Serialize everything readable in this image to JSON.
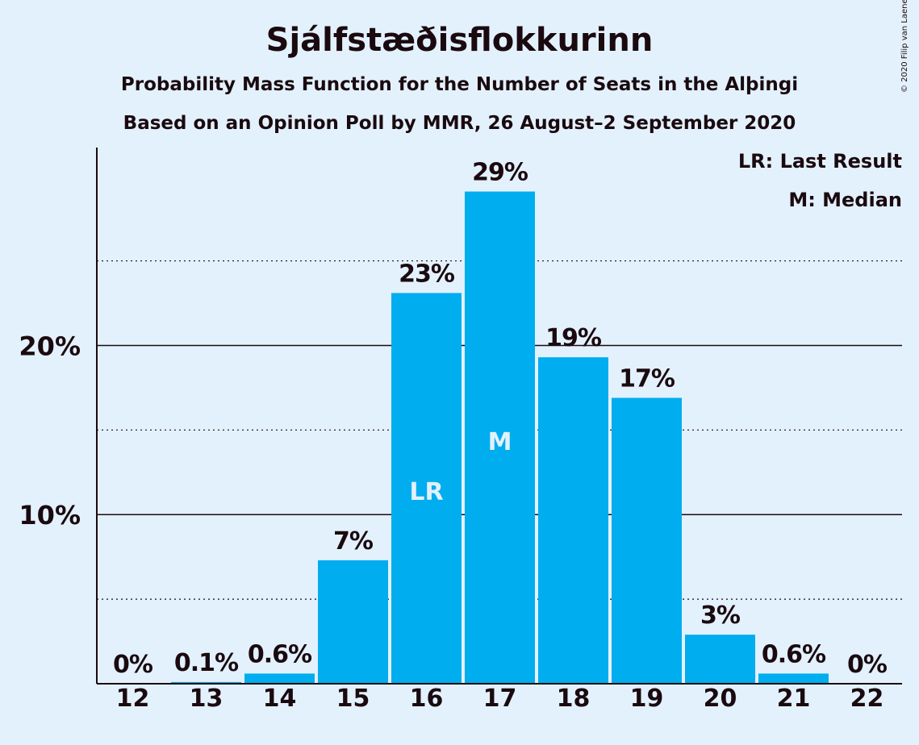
{
  "header": {
    "title": "Sjálfstæðisflokkurinn",
    "subtitle": "Probability Mass Function for the Number of Seats in the Alþingi",
    "subtitle2": "Based on an Opinion Poll by MMR, 26 August–2 September 2020",
    "copyright": "© 2020 Filip van Laenen"
  },
  "legend": {
    "last_result": "LR: Last Result",
    "median": "M: Median"
  },
  "colors": {
    "bar": "#00adef",
    "background": "#e3f1fd",
    "text": "#1a0a0f"
  },
  "chart_data": {
    "type": "bar",
    "categories": [
      "12",
      "13",
      "14",
      "15",
      "16",
      "17",
      "18",
      "19",
      "20",
      "21",
      "22"
    ],
    "values": [
      0,
      0.1,
      0.6,
      7.3,
      23.1,
      29.1,
      19.3,
      16.9,
      2.9,
      0.6,
      0
    ],
    "value_labels": [
      "0%",
      "0.1%",
      "0.6%",
      "7%",
      "23%",
      "29%",
      "19%",
      "17%",
      "3%",
      "0.6%",
      "0%"
    ],
    "bar_markers": {
      "16": "LR",
      "17": "M"
    },
    "y_ticks": [
      10,
      20
    ],
    "y_tick_labels": [
      "10%",
      "20%"
    ],
    "y_minor_gridlines": [
      5,
      15,
      25
    ],
    "ylim": [
      0,
      31.7
    ],
    "grid": true,
    "legend_position": "top-right"
  }
}
